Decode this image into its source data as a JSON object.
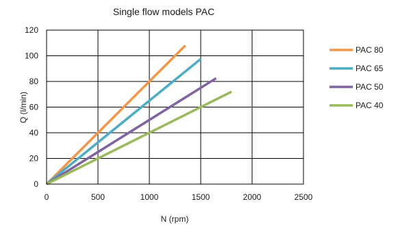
{
  "chart_data": {
    "type": "line",
    "title": "Single flow models PAC",
    "xlabel": "N (rpm)",
    "ylabel": "Q (l/min)",
    "xlim": [
      0,
      2500
    ],
    "ylim": [
      0,
      120
    ],
    "x_ticks": [
      0,
      500,
      1000,
      1500,
      2000,
      2500
    ],
    "y_ticks": [
      0,
      20,
      40,
      60,
      80,
      100,
      120
    ],
    "grid": true,
    "legend_position": "right",
    "series": [
      {
        "name": "PAC 80",
        "color": "#F79646",
        "x": [
          0,
          1350
        ],
        "y": [
          0,
          108
        ]
      },
      {
        "name": "PAC 65",
        "color": "#4BACC6",
        "x": [
          0,
          1500
        ],
        "y": [
          0,
          97.5
        ]
      },
      {
        "name": "PAC 50",
        "color": "#8064A2",
        "x": [
          0,
          1650
        ],
        "y": [
          0,
          82.5
        ]
      },
      {
        "name": "PAC 40",
        "color": "#9BBB59",
        "x": [
          0,
          1800
        ],
        "y": [
          0,
          72
        ]
      }
    ]
  }
}
